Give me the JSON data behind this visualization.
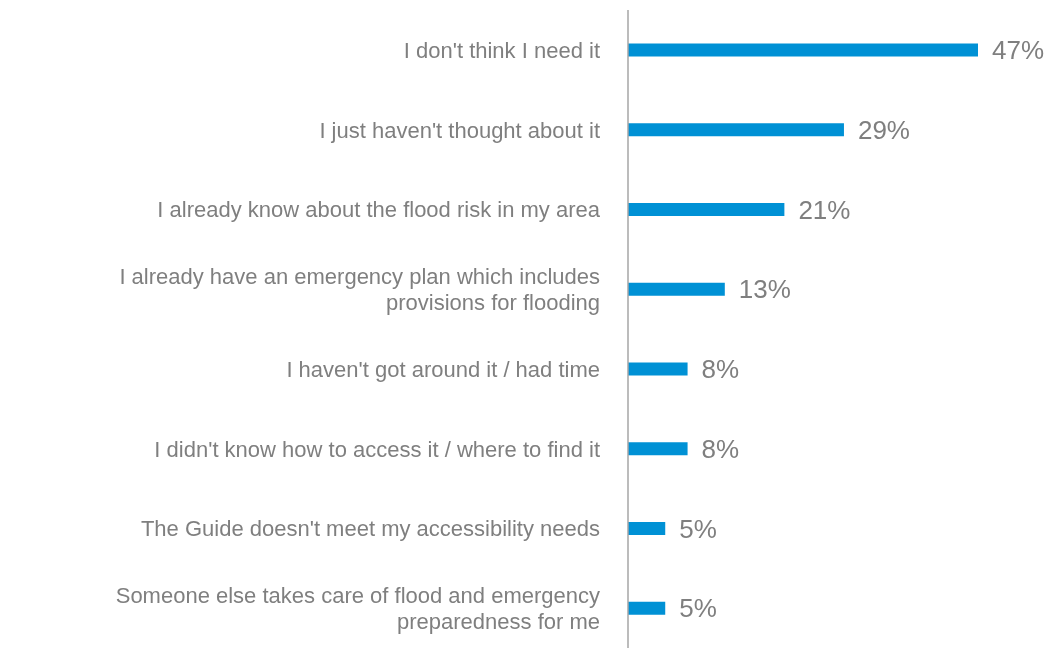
{
  "chart_data": {
    "type": "bar",
    "orientation": "horizontal",
    "categories": [
      "I don't think I need it",
      "I just haven't thought about it",
      "I already know about the flood risk in my area",
      "I already have an emergency plan which includes provisions for flooding",
      "I haven't got around it / had time",
      "I didn't know how to access it / where to find it",
      "The Guide doesn't meet my accessibility needs",
      "Someone else takes care of flood and emergency preparedness for me"
    ],
    "values": [
      47,
      29,
      21,
      13,
      8,
      8,
      5,
      5
    ],
    "value_labels": [
      "47%",
      "29%",
      "21%",
      "13%",
      "8%",
      "8%",
      "5%",
      "5%"
    ],
    "color": "#0091d5"
  }
}
